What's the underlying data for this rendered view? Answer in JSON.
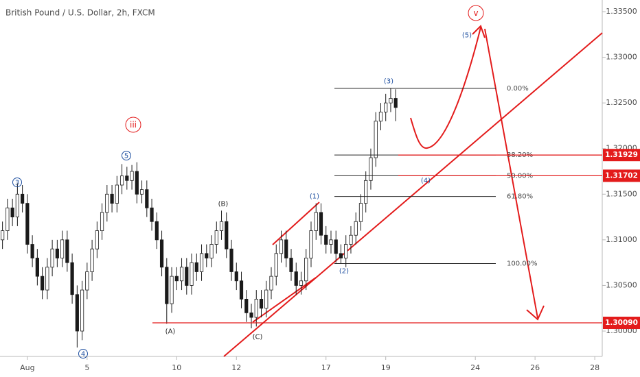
{
  "chart_data": {
    "type": "candlestick",
    "title": "British Pound / U.S. Dollar, 2h, FXCM",
    "x": [
      -5,
      -4,
      -3,
      -2,
      -1,
      0,
      1,
      2,
      3,
      4,
      5,
      6,
      7,
      8,
      9,
      10,
      11,
      12,
      13,
      14,
      15,
      16,
      17,
      18,
      19,
      20,
      21,
      22,
      23,
      24,
      25,
      26,
      27,
      28,
      29,
      30,
      31,
      32,
      33,
      34,
      35,
      36,
      37,
      38,
      39,
      40,
      41,
      42,
      43,
      44,
      45,
      46,
      47,
      48,
      49,
      50,
      51,
      52,
      53,
      54,
      55,
      56,
      57,
      58,
      59,
      60,
      61,
      62,
      63,
      64,
      65,
      66,
      67,
      68,
      69,
      70,
      71,
      72,
      73,
      74
    ],
    "open": [
      1.31,
      1.311,
      1.3135,
      1.3125,
      1.315,
      1.314,
      1.3095,
      1.308,
      1.306,
      1.3045,
      1.307,
      1.309,
      1.308,
      1.31,
      1.3075,
      1.304,
      1.3,
      1.3045,
      1.3065,
      1.309,
      1.311,
      1.313,
      1.315,
      1.314,
      1.316,
      1.317,
      1.3165,
      1.3175,
      1.315,
      1.3155,
      1.3135,
      1.312,
      1.31,
      1.307,
      1.303,
      1.306,
      1.3055,
      1.307,
      1.305,
      1.3075,
      1.3065,
      1.3085,
      1.308,
      1.3095,
      1.311,
      1.312,
      1.309,
      1.3065,
      1.3055,
      1.3035,
      1.302,
      1.3015,
      1.3035,
      1.3025,
      1.3045,
      1.306,
      1.3085,
      1.31,
      1.308,
      1.3065,
      1.305,
      1.3055,
      1.308,
      1.311,
      1.313,
      1.3105,
      1.3095,
      1.31,
      1.3085,
      1.308,
      1.3095,
      1.3105,
      1.312,
      1.314,
      1.3165,
      1.319,
      1.323,
      1.324,
      1.325,
      1.3255
    ],
    "high": [
      1.312,
      1.3145,
      1.3145,
      1.3162,
      1.316,
      1.315,
      1.3105,
      1.309,
      1.307,
      1.308,
      1.31,
      1.31,
      1.311,
      1.311,
      1.3085,
      1.305,
      1.3055,
      1.3075,
      1.31,
      1.312,
      1.314,
      1.316,
      1.316,
      1.317,
      1.3183,
      1.318,
      1.3182,
      1.3185,
      1.3165,
      1.3165,
      1.3145,
      1.313,
      1.311,
      1.308,
      1.307,
      1.307,
      1.308,
      1.308,
      1.3085,
      1.3085,
      1.3095,
      1.3095,
      1.3105,
      1.312,
      1.3132,
      1.313,
      1.31,
      1.3075,
      1.3065,
      1.3045,
      1.303,
      1.3045,
      1.3045,
      1.3055,
      1.307,
      1.3095,
      1.311,
      1.311,
      1.309,
      1.3075,
      1.3065,
      1.309,
      1.312,
      1.314,
      1.314,
      1.3115,
      1.311,
      1.311,
      1.3095,
      1.3105,
      1.3115,
      1.313,
      1.315,
      1.3175,
      1.32,
      1.324,
      1.325,
      1.326,
      1.3266,
      1.3265
    ],
    "low": [
      1.309,
      1.31,
      1.3115,
      1.3115,
      1.313,
      1.3085,
      1.307,
      1.305,
      1.3035,
      1.3035,
      1.306,
      1.307,
      1.307,
      1.3065,
      1.303,
      1.2982,
      1.299,
      1.3035,
      1.3055,
      1.308,
      1.31,
      1.312,
      1.313,
      1.313,
      1.315,
      1.3155,
      1.3155,
      1.314,
      1.314,
      1.3125,
      1.311,
      1.309,
      1.306,
      1.3008,
      1.302,
      1.3045,
      1.3045,
      1.304,
      1.304,
      1.3055,
      1.3055,
      1.307,
      1.307,
      1.3085,
      1.31,
      1.308,
      1.3055,
      1.3045,
      1.3025,
      1.301,
      1.3003,
      1.3005,
      1.3015,
      1.3015,
      1.3035,
      1.305,
      1.3075,
      1.307,
      1.3055,
      1.304,
      1.304,
      1.3045,
      1.307,
      1.31,
      1.3095,
      1.3085,
      1.3085,
      1.3075,
      1.3074,
      1.307,
      1.3085,
      1.3095,
      1.311,
      1.313,
      1.3155,
      1.318,
      1.322,
      1.323,
      1.324,
      1.323
    ],
    "close": [
      1.311,
      1.3135,
      1.3125,
      1.315,
      1.314,
      1.3095,
      1.308,
      1.306,
      1.3045,
      1.307,
      1.309,
      1.308,
      1.31,
      1.3075,
      1.304,
      1.3,
      1.3045,
      1.3065,
      1.309,
      1.311,
      1.313,
      1.315,
      1.314,
      1.316,
      1.317,
      1.3165,
      1.3175,
      1.315,
      1.3155,
      1.3135,
      1.312,
      1.31,
      1.307,
      1.303,
      1.306,
      1.3055,
      1.307,
      1.305,
      1.3075,
      1.3065,
      1.3085,
      1.308,
      1.3095,
      1.311,
      1.312,
      1.309,
      1.3065,
      1.3055,
      1.3035,
      1.302,
      1.3015,
      1.3035,
      1.3025,
      1.3045,
      1.306,
      1.3085,
      1.31,
      1.308,
      1.3065,
      1.305,
      1.3055,
      1.308,
      1.311,
      1.313,
      1.3105,
      1.3095,
      1.31,
      1.3085,
      1.308,
      1.3095,
      1.3105,
      1.312,
      1.314,
      1.3165,
      1.319,
      1.323,
      1.324,
      1.325,
      1.3255,
      1.3245
    ],
    "up_color": "#ffffff",
    "down_color": "#1a1a1a",
    "xlim": [
      -5.5,
      115.5
    ],
    "xticks": [
      {
        "value": 0,
        "label": "Aug"
      },
      {
        "value": 12,
        "label": "5"
      },
      {
        "value": 30,
        "label": "10"
      },
      {
        "value": 42,
        "label": "12"
      },
      {
        "value": 60,
        "label": "17"
      },
      {
        "value": 72,
        "label": "19"
      },
      {
        "value": 90,
        "label": "24"
      },
      {
        "value": 102,
        "label": "26"
      },
      {
        "value": 114,
        "label": "28"
      }
    ],
    "ylim": [
      1.29722,
      1.33628
    ],
    "yticks": [
      {
        "value": 1.3,
        "label": "1.30000"
      },
      {
        "value": 1.305,
        "label": "1.30500"
      },
      {
        "value": 1.31,
        "label": "1.31000"
      },
      {
        "value": 1.315,
        "label": "1.31500"
      },
      {
        "value": 1.32,
        "label": "1.32000"
      },
      {
        "value": 1.325,
        "label": "1.32500"
      },
      {
        "value": 1.33,
        "label": "1.33000"
      },
      {
        "value": 1.335,
        "label": "1.33500"
      }
    ],
    "price_labels": [
      {
        "value": 1.31929,
        "label": "1.31929"
      },
      {
        "value": 1.31702,
        "label": "1.31702"
      },
      {
        "value": 1.3009,
        "label": "1.30090"
      }
    ],
    "fib_levels": [
      {
        "value": 1.3266,
        "label": "0.00%"
      },
      {
        "value": 1.31929,
        "label": "38.20%"
      },
      {
        "value": 1.31702,
        "label": "50.00%"
      },
      {
        "value": 1.31475,
        "label": "61.80%"
      },
      {
        "value": 1.3074,
        "label": "100.00%"
      }
    ],
    "annotations": [
      "3",
      "4",
      "5",
      "iii",
      "(A)",
      "(B)",
      "(C)",
      "(1)",
      "(2)",
      "(3)",
      "(4)",
      "(5)",
      "v"
    ]
  }
}
